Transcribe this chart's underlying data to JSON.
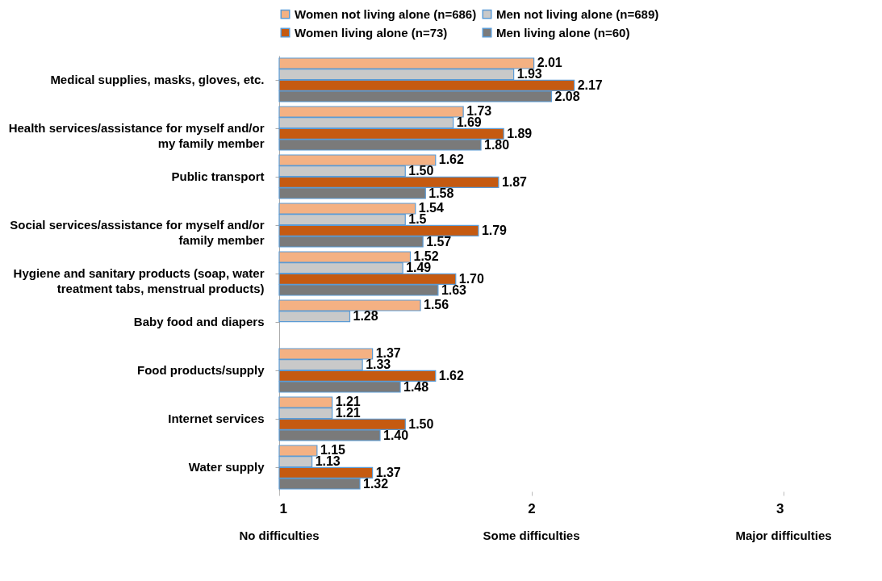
{
  "chart_data": {
    "type": "bar",
    "orientation": "horizontal",
    "categories": [
      "Medical supplies, masks, gloves, etc.",
      "Health services/assistance for myself and/or my family member",
      "Public transport",
      "Social services/assistance for myself and/or family member",
      "Hygiene and sanitary products (soap, water treatment tabs, menstrual products)",
      "Baby food and diapers",
      "Food products/supply",
      "Internet services",
      "Water supply"
    ],
    "series": [
      {
        "name": "Women not living alone (n=686)",
        "color": "#f4b183",
        "values": [
          2.01,
          1.73,
          1.62,
          1.54,
          1.52,
          1.56,
          1.37,
          1.21,
          1.15
        ],
        "value_labels": [
          "2.01",
          "1.73",
          "1.62",
          "1.54",
          "1.52",
          "1.56",
          "1.37",
          "1.21",
          "1.15"
        ]
      },
      {
        "name": "Men not living alone (n=689)",
        "color": "#c9c9c9",
        "values": [
          1.93,
          1.69,
          1.5,
          1.5,
          1.49,
          1.28,
          1.33,
          1.21,
          1.13
        ],
        "value_labels": [
          "1.93",
          "1.69",
          "1.50",
          "1.5",
          "1.49",
          "1.28",
          "1.33",
          "1.21",
          "1.13"
        ]
      },
      {
        "name": "Women living alone (n=73)",
        "color": "#c55a11",
        "values": [
          2.17,
          1.89,
          1.87,
          1.79,
          1.7,
          null,
          1.62,
          1.5,
          1.37
        ],
        "value_labels": [
          "2.17",
          "1.89",
          "1.87",
          "1.79",
          "1.70",
          null,
          "1.62",
          "1.50",
          "1.37"
        ]
      },
      {
        "name": "Men living alone (n=60)",
        "color": "#7a7a7a",
        "values": [
          2.08,
          1.8,
          1.58,
          1.57,
          1.63,
          null,
          1.48,
          1.4,
          1.32
        ],
        "value_labels": [
          "2.08",
          "1.80",
          "1.58",
          "1.57",
          "1.63",
          null,
          "1.48",
          "1.40",
          "1.32"
        ]
      }
    ],
    "xlim": [
      1,
      3
    ],
    "xticks": [
      1,
      2,
      3
    ],
    "grid": false,
    "legend": "top",
    "annotations": [
      "No difficulties",
      "Some difficulties",
      "Major difficulties"
    ]
  }
}
